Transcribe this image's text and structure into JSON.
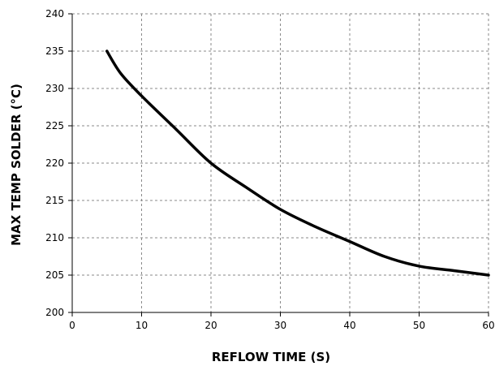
{
  "chart_data": {
    "type": "line",
    "title": "",
    "xlabel": "REFLOW TIME (S)",
    "ylabel": "MAX TEMP SOLDER (°C)",
    "xlim": [
      0,
      60
    ],
    "ylim": [
      200,
      240
    ],
    "xticks": [
      "0",
      "10",
      "20",
      "30",
      "40",
      "50",
      "60"
    ],
    "yticks": [
      "200",
      "205",
      "210",
      "215",
      "220",
      "225",
      "230",
      "235",
      "240"
    ],
    "grid": true,
    "series": [
      {
        "color": "#000000",
        "x": [
          5,
          7,
          10,
          15,
          20,
          25,
          30,
          35,
          40,
          45,
          50,
          55,
          60
        ],
        "y": [
          235,
          232,
          229,
          224.5,
          220,
          216.8,
          213.8,
          211.5,
          209.5,
          207.5,
          206.2,
          205.6,
          205
        ]
      }
    ]
  }
}
